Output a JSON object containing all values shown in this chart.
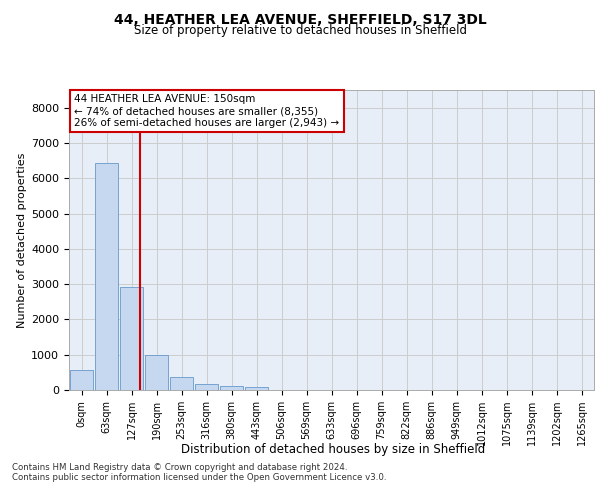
{
  "title": "44, HEATHER LEA AVENUE, SHEFFIELD, S17 3DL",
  "subtitle": "Size of property relative to detached houses in Sheffield",
  "xlabel": "Distribution of detached houses by size in Sheffield",
  "ylabel": "Number of detached properties",
  "bar_labels": [
    "0sqm",
    "63sqm",
    "127sqm",
    "190sqm",
    "253sqm",
    "316sqm",
    "380sqm",
    "443sqm",
    "506sqm",
    "569sqm",
    "633sqm",
    "696sqm",
    "759sqm",
    "822sqm",
    "886sqm",
    "949sqm",
    "1012sqm",
    "1075sqm",
    "1139sqm",
    "1202sqm",
    "1265sqm"
  ],
  "bar_values": [
    570,
    6420,
    2920,
    980,
    355,
    175,
    105,
    95,
    0,
    0,
    0,
    0,
    0,
    0,
    0,
    0,
    0,
    0,
    0,
    0,
    0
  ],
  "bar_color": "#c5d8f0",
  "bar_edge_color": "#6699cc",
  "vline_x": 2.35,
  "vline_color": "#cc0000",
  "ylim": [
    0,
    8500
  ],
  "yticks": [
    0,
    1000,
    2000,
    3000,
    4000,
    5000,
    6000,
    7000,
    8000
  ],
  "grid_color": "#cccccc",
  "bg_color": "#e8eef8",
  "annotation_text": "44 HEATHER LEA AVENUE: 150sqm\n← 74% of detached houses are smaller (8,355)\n26% of semi-detached houses are larger (2,943) →",
  "annotation_box_color": "#cc0000",
  "footnote1": "Contains HM Land Registry data © Crown copyright and database right 2024.",
  "footnote2": "Contains public sector information licensed under the Open Government Licence v3.0."
}
